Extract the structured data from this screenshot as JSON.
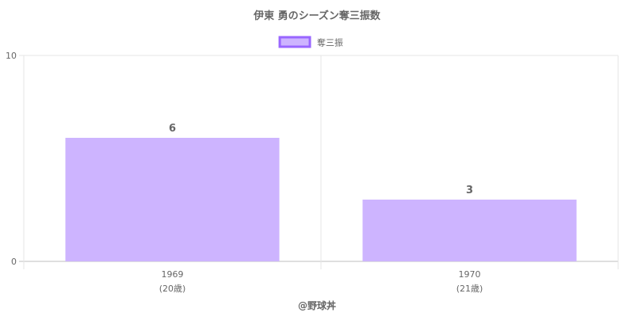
{
  "chart_data": {
    "type": "bar",
    "title": "伊東 勇のシーズン奪三振数",
    "categories": [
      "1969",
      "1970"
    ],
    "category_sublabels": [
      "(20歳)",
      "(21歳)"
    ],
    "series": [
      {
        "name": "奪三振",
        "values": [
          6,
          3
        ],
        "color": "#cdb4ff",
        "border_color": "#9966ff"
      }
    ],
    "ylim": [
      0,
      10
    ],
    "yticks": [
      "0",
      "10"
    ],
    "data_labels": [
      "6",
      "3"
    ],
    "grid": true,
    "legend": "top-center",
    "xlabel": "",
    "ylabel": ""
  },
  "footer": {
    "credit": "@野球丼"
  },
  "colors": {
    "title_text": "#666666",
    "axis_text": "#666666",
    "grid": "#e6e6e6",
    "axis_line": "#bfbfbf"
  }
}
